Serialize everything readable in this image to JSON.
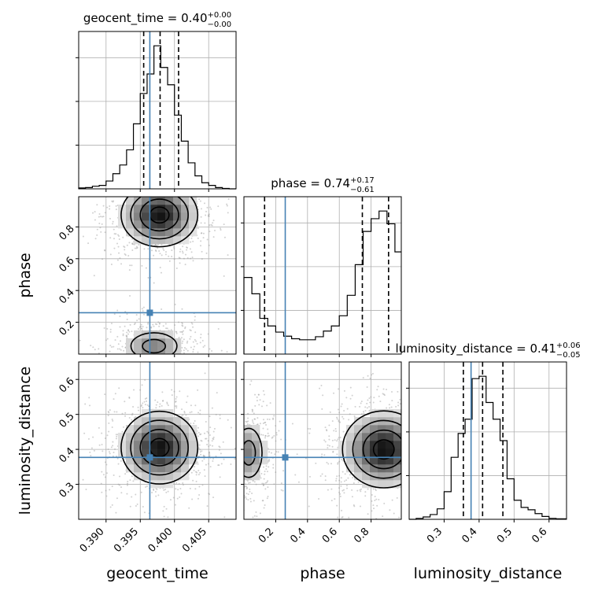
{
  "chart_data": {
    "type": "corner",
    "parameters": [
      "geocent_time",
      "phase",
      "luminosity_distance"
    ],
    "truth_color": "#4682b4",
    "ranges": {
      "geocent_time": [
        0.386,
        0.409
      ],
      "phase": [
        0.0,
        0.99
      ],
      "luminosity_distance": [
        0.2,
        0.65
      ]
    },
    "truths": {
      "geocent_time": 0.3964,
      "phase": 0.26,
      "luminosity_distance": 0.377
    },
    "titles": {
      "geocent_time": {
        "name": "geocent_time",
        "median": "0.40",
        "plus": "+0.00",
        "minus": "−0.00"
      },
      "phase": {
        "name": "phase",
        "median": "0.74",
        "plus": "+0.17",
        "minus": "−0.61"
      },
      "luminosity_distance": {
        "name": "luminosity_distance",
        "median": "0.41",
        "plus": "+0.06",
        "minus": "−0.05"
      }
    },
    "quantiles": {
      "geocent_time": [
        0.3955,
        0.3979,
        0.4006
      ],
      "phase": [
        0.13,
        0.745,
        0.91
      ],
      "luminosity_distance": [
        0.355,
        0.41,
        0.468
      ]
    },
    "ticks": {
      "geocent_time": [
        "0.390",
        "0.395",
        "0.400",
        "0.405"
      ],
      "phase_y": [
        "0.2",
        "0.4",
        "0.6",
        "0.8"
      ],
      "phase_x": [
        "0.2",
        "0.4",
        "0.6",
        "0.8"
      ],
      "luminosity_distance_y": [
        "0.3",
        "0.4",
        "0.5",
        "0.6"
      ],
      "luminosity_distance_x": [
        "0.3",
        "0.4",
        "0.5",
        "0.6"
      ]
    },
    "histograms": {
      "geocent_time": {
        "edges": [
          0.386,
          0.387,
          0.388,
          0.389,
          0.39,
          0.391,
          0.392,
          0.393,
          0.394,
          0.395,
          0.396,
          0.397,
          0.398,
          0.399,
          0.4,
          0.401,
          0.402,
          0.403,
          0.404,
          0.405,
          0.406,
          0.407,
          0.408,
          0.409
        ],
        "counts": [
          2,
          3,
          6,
          8,
          18,
          35,
          55,
          90,
          150,
          220,
          265,
          330,
          280,
          240,
          170,
          110,
          60,
          30,
          14,
          8,
          3,
          1,
          0
        ]
      },
      "phase": {
        "edges": [
          0.0,
          0.05,
          0.1,
          0.15,
          0.2,
          0.25,
          0.3,
          0.35,
          0.4,
          0.45,
          0.5,
          0.55,
          0.6,
          0.65,
          0.7,
          0.75,
          0.8,
          0.85,
          0.9,
          0.95,
          0.99
        ],
        "counts": [
          150,
          118,
          70,
          55,
          43,
          35,
          30,
          28,
          28,
          34,
          45,
          55,
          75,
          115,
          175,
          240,
          265,
          280,
          255,
          200
        ]
      },
      "luminosity_distance": {
        "edges": [
          0.2,
          0.22,
          0.24,
          0.26,
          0.28,
          0.3,
          0.32,
          0.34,
          0.36,
          0.38,
          0.4,
          0.42,
          0.44,
          0.46,
          0.48,
          0.5,
          0.52,
          0.54,
          0.56,
          0.58,
          0.6,
          0.62,
          0.65
        ],
        "counts": [
          0,
          2,
          5,
          10,
          22,
          58,
          130,
          180,
          210,
          295,
          300,
          245,
          210,
          165,
          85,
          40,
          25,
          20,
          12,
          6,
          2,
          1
        ]
      }
    },
    "densities": {
      "phase_vs_geocent_time": {
        "x": "geocent_time",
        "y": "phase",
        "blobs": [
          {
            "cx": 0.3978,
            "cy": 0.875,
            "sx": 0.0028,
            "sy": 0.1,
            "w": 1.0
          },
          {
            "cx": 0.397,
            "cy": 0.05,
            "sx": 0.0024,
            "sy": 0.06,
            "w": 0.55
          }
        ]
      },
      "luminosity_distance_vs_geocent_time": {
        "x": "geocent_time",
        "y": "luminosity_distance",
        "blobs": [
          {
            "cx": 0.3978,
            "cy": 0.405,
            "sx": 0.0028,
            "sy": 0.052,
            "w": 1.0
          }
        ]
      },
      "luminosity_distance_vs_phase": {
        "x": "phase",
        "y": "luminosity_distance",
        "blobs": [
          {
            "cx": 0.88,
            "cy": 0.4,
            "sx": 0.13,
            "sy": 0.055,
            "w": 1.0
          },
          {
            "cx": 0.03,
            "cy": 0.39,
            "sx": 0.06,
            "sy": 0.05,
            "w": 0.55
          }
        ]
      }
    },
    "grid": true
  }
}
